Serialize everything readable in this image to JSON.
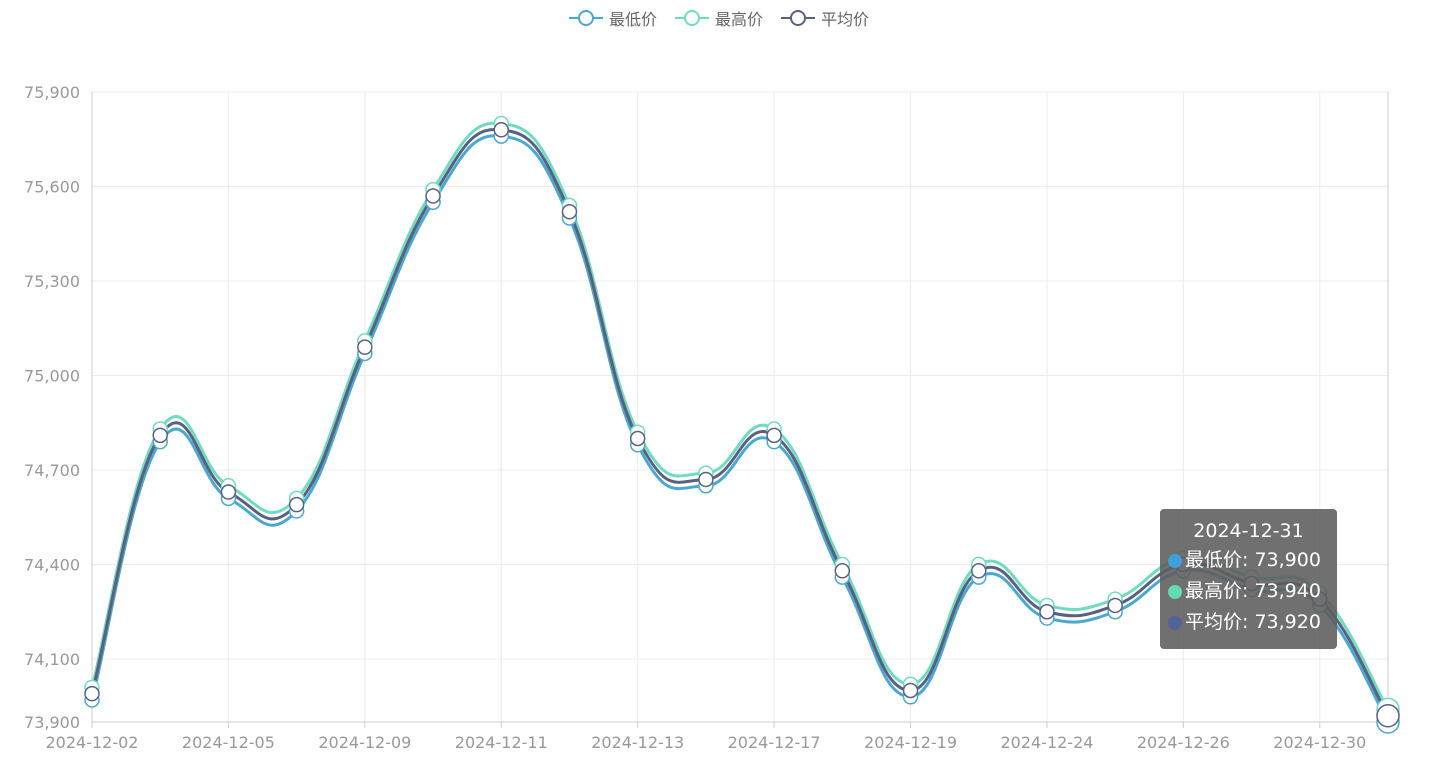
{
  "chart_data": {
    "type": "line",
    "title": "",
    "xlabel": "",
    "ylabel": "",
    "smooth": true,
    "grid": true,
    "legend_position": "top-center",
    "ylim": [
      73900,
      75900
    ],
    "yticks": [
      73900,
      74100,
      74400,
      74700,
      75000,
      75300,
      75600,
      75900
    ],
    "ytick_labels": [
      "73,900",
      "74,100",
      "74,400",
      "74,700",
      "75,000",
      "75,300",
      "75,600",
      "75,900"
    ],
    "x": [
      "2024-12-02",
      "2024-12-03",
      "2024-12-05",
      "2024-12-06",
      "2024-12-09",
      "2024-12-10",
      "2024-12-11",
      "2024-12-12",
      "2024-12-13",
      "2024-12-16",
      "2024-12-17",
      "2024-12-18",
      "2024-12-19",
      "2024-12-20",
      "2024-12-24",
      "2024-12-25",
      "2024-12-26",
      "2024-12-27",
      "2024-12-30",
      "2024-12-31"
    ],
    "xtick_labels": [
      "2024-12-02",
      "2024-12-05",
      "2024-12-09",
      "2024-12-11",
      "2024-12-13",
      "2024-12-17",
      "2024-12-19",
      "2024-12-24",
      "2024-12-26",
      "2024-12-30"
    ],
    "series": [
      {
        "name": "最低价",
        "color": "#4aa8d0",
        "values": [
          73970,
          74790,
          74610,
          74570,
          75070,
          75550,
          75760,
          75500,
          74780,
          74650,
          74790,
          74360,
          73980,
          74360,
          74230,
          74250,
          74380,
          74320,
          74270,
          73900
        ]
      },
      {
        "name": "最高价",
        "color": "#6fdcc0",
        "values": [
          74010,
          74830,
          74650,
          74610,
          75110,
          75590,
          75800,
          75540,
          74820,
          74690,
          74830,
          74400,
          74020,
          74400,
          74270,
          74290,
          74420,
          74360,
          74310,
          73940
        ]
      },
      {
        "name": "平均价",
        "color": "#5a6080",
        "values": [
          73990,
          74810,
          74630,
          74590,
          75090,
          75570,
          75780,
          75520,
          74800,
          74670,
          74810,
          74380,
          74000,
          74380,
          74250,
          74270,
          74400,
          74340,
          74290,
          73920
        ]
      }
    ],
    "tooltip": {
      "title": "2024-12-31",
      "rows": [
        {
          "label": "最低价: 73,900",
          "color": "#3fa0dc"
        },
        {
          "label": "最高价: 73,940",
          "color": "#62d8b4"
        },
        {
          "label": "平均价: 73,920",
          "color": "#54629a"
        }
      ]
    }
  }
}
